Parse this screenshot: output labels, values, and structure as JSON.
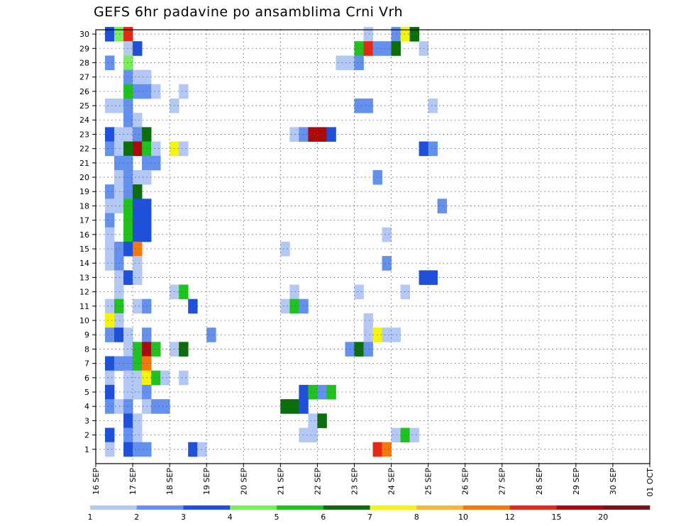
{
  "chart_data": {
    "type": "heatmap",
    "title": "GEFS 6hr padavine po ansamblima Crni Vrh",
    "xlabel": "",
    "ylabel": "",
    "x_ticks": [
      "16 SEP",
      "17 SEP",
      "18 SEP",
      "19 SEP",
      "20 SEP",
      "21 SEP",
      "22 SEP",
      "23 SEP",
      "24 SEP",
      "25 SEP",
      "26 SEP",
      "27 SEP",
      "28 SEP",
      "29 SEP",
      "30 SEP",
      "01 OCT"
    ],
    "y_ticks": [
      "1",
      "2",
      "3",
      "4",
      "5",
      "6",
      "7",
      "8",
      "9",
      "10",
      "11",
      "12",
      "13",
      "14",
      "15",
      "16",
      "17",
      "18",
      "19",
      "20",
      "21",
      "22",
      "23",
      "24",
      "25",
      "26",
      "27",
      "28",
      "29",
      "30"
    ],
    "x_unit": "6-hour step from 16 SEP 00Z",
    "y_range": [
      0,
      30
    ],
    "grid": true,
    "colorbar": {
      "labels": [
        "1",
        "2",
        "3",
        "4",
        "5",
        "6",
        "7",
        "8",
        "10",
        "12",
        "15",
        "20"
      ],
      "colors": [
        "#b4c8f5",
        "#6490ef",
        "#1e50dc",
        "#78f05a",
        "#1ec31e",
        "#0a6e0a",
        "#f5f50a",
        "#fab43c",
        "#f5780a",
        "#e62814",
        "#aa0a0a",
        "#781414"
      ]
    },
    "cells": [
      [
        1,
        30,
        2
      ],
      [
        2,
        30,
        3
      ],
      [
        3,
        30,
        9
      ],
      [
        29,
        30,
        0
      ],
      [
        32,
        30,
        1
      ],
      [
        33,
        30,
        6
      ],
      [
        34,
        30,
        5
      ],
      [
        3,
        29,
        0
      ],
      [
        4,
        29,
        2
      ],
      [
        28,
        29,
        4
      ],
      [
        29,
        29,
        9
      ],
      [
        30,
        29,
        1
      ],
      [
        31,
        29,
        1
      ],
      [
        32,
        29,
        5
      ],
      [
        35,
        29,
        0
      ],
      [
        1,
        28,
        1
      ],
      [
        3,
        28,
        3
      ],
      [
        26,
        28,
        0
      ],
      [
        27,
        28,
        0
      ],
      [
        28,
        28,
        1
      ],
      [
        3,
        27,
        1
      ],
      [
        4,
        27,
        0
      ],
      [
        5,
        27,
        0
      ],
      [
        3,
        26,
        4
      ],
      [
        4,
        26,
        1
      ],
      [
        5,
        26,
        1
      ],
      [
        6,
        26,
        0
      ],
      [
        9,
        26,
        0
      ],
      [
        1,
        25,
        0
      ],
      [
        2,
        25,
        0
      ],
      [
        3,
        25,
        1
      ],
      [
        8,
        25,
        0
      ],
      [
        28,
        25,
        1
      ],
      [
        29,
        25,
        1
      ],
      [
        36,
        25,
        0
      ],
      [
        3,
        24,
        1
      ],
      [
        4,
        24,
        0
      ],
      [
        1,
        23,
        2
      ],
      [
        2,
        23,
        0
      ],
      [
        3,
        23,
        0
      ],
      [
        4,
        23,
        1
      ],
      [
        5,
        23,
        5
      ],
      [
        21,
        23,
        0
      ],
      [
        22,
        23,
        1
      ],
      [
        23,
        23,
        10
      ],
      [
        24,
        23,
        10
      ],
      [
        25,
        23,
        2
      ],
      [
        1,
        22,
        1
      ],
      [
        2,
        22,
        0
      ],
      [
        3,
        22,
        5
      ],
      [
        4,
        22,
        10
      ],
      [
        5,
        22,
        4
      ],
      [
        6,
        22,
        0
      ],
      [
        8,
        22,
        6
      ],
      [
        9,
        22,
        0
      ],
      [
        35,
        22,
        2
      ],
      [
        36,
        22,
        1
      ],
      [
        2,
        21,
        1
      ],
      [
        3,
        21,
        1
      ],
      [
        5,
        21,
        1
      ],
      [
        6,
        21,
        1
      ],
      [
        2,
        20,
        0
      ],
      [
        3,
        20,
        1
      ],
      [
        4,
        20,
        0
      ],
      [
        5,
        20,
        0
      ],
      [
        30,
        20,
        1
      ],
      [
        1,
        19,
        1
      ],
      [
        2,
        19,
        0
      ],
      [
        3,
        19,
        1
      ],
      [
        4,
        19,
        5
      ],
      [
        1,
        18,
        0
      ],
      [
        2,
        18,
        0
      ],
      [
        3,
        18,
        4
      ],
      [
        4,
        18,
        2
      ],
      [
        5,
        18,
        2
      ],
      [
        37,
        18,
        1
      ],
      [
        1,
        17,
        1
      ],
      [
        3,
        17,
        4
      ],
      [
        4,
        17,
        2
      ],
      [
        5,
        17,
        2
      ],
      [
        1,
        16,
        0
      ],
      [
        3,
        16,
        4
      ],
      [
        4,
        16,
        2
      ],
      [
        5,
        16,
        2
      ],
      [
        31,
        16,
        0
      ],
      [
        1,
        15,
        0
      ],
      [
        2,
        15,
        1
      ],
      [
        3,
        15,
        2
      ],
      [
        4,
        15,
        8
      ],
      [
        20,
        15,
        0
      ],
      [
        1,
        14,
        0
      ],
      [
        2,
        14,
        1
      ],
      [
        4,
        14,
        0
      ],
      [
        31,
        14,
        1
      ],
      [
        2,
        13,
        0
      ],
      [
        3,
        13,
        2
      ],
      [
        4,
        13,
        0
      ],
      [
        35,
        13,
        2
      ],
      [
        36,
        13,
        2
      ],
      [
        2,
        12,
        0
      ],
      [
        8,
        12,
        0
      ],
      [
        9,
        12,
        4
      ],
      [
        21,
        12,
        0
      ],
      [
        28,
        12,
        0
      ],
      [
        33,
        12,
        0
      ],
      [
        1,
        11,
        0
      ],
      [
        2,
        11,
        4
      ],
      [
        4,
        11,
        0
      ],
      [
        5,
        11,
        1
      ],
      [
        10,
        11,
        2
      ],
      [
        20,
        11,
        0
      ],
      [
        21,
        11,
        4
      ],
      [
        22,
        11,
        1
      ],
      [
        1,
        10,
        6
      ],
      [
        2,
        10,
        0
      ],
      [
        29,
        10,
        0
      ],
      [
        1,
        9,
        1
      ],
      [
        2,
        9,
        2
      ],
      [
        3,
        9,
        0
      ],
      [
        5,
        9,
        1
      ],
      [
        12,
        9,
        1
      ],
      [
        29,
        9,
        0
      ],
      [
        30,
        9,
        6
      ],
      [
        31,
        9,
        0
      ],
      [
        32,
        9,
        0
      ],
      [
        3,
        8,
        0
      ],
      [
        4,
        8,
        4
      ],
      [
        5,
        8,
        10
      ],
      [
        6,
        8,
        4
      ],
      [
        8,
        8,
        0
      ],
      [
        9,
        8,
        5
      ],
      [
        27,
        8,
        1
      ],
      [
        28,
        8,
        5
      ],
      [
        29,
        8,
        1
      ],
      [
        1,
        7,
        2
      ],
      [
        2,
        7,
        1
      ],
      [
        3,
        7,
        1
      ],
      [
        4,
        7,
        4
      ],
      [
        5,
        7,
        8
      ],
      [
        1,
        6,
        0
      ],
      [
        3,
        6,
        0
      ],
      [
        4,
        6,
        0
      ],
      [
        5,
        6,
        6
      ],
      [
        6,
        6,
        4
      ],
      [
        7,
        6,
        0
      ],
      [
        9,
        6,
        0
      ],
      [
        1,
        5,
        2
      ],
      [
        3,
        5,
        0
      ],
      [
        4,
        5,
        0
      ],
      [
        5,
        5,
        1
      ],
      [
        22,
        5,
        2
      ],
      [
        23,
        5,
        4
      ],
      [
        24,
        5,
        1
      ],
      [
        25,
        5,
        4
      ],
      [
        1,
        4,
        1
      ],
      [
        2,
        4,
        0
      ],
      [
        3,
        4,
        1
      ],
      [
        5,
        4,
        0
      ],
      [
        6,
        4,
        1
      ],
      [
        7,
        4,
        1
      ],
      [
        20,
        4,
        5
      ],
      [
        21,
        4,
        5
      ],
      [
        22,
        4,
        2
      ],
      [
        3,
        3,
        2
      ],
      [
        4,
        3,
        0
      ],
      [
        23,
        3,
        0
      ],
      [
        24,
        3,
        5
      ],
      [
        1,
        2,
        2
      ],
      [
        3,
        2,
        1
      ],
      [
        4,
        2,
        0
      ],
      [
        22,
        2,
        0
      ],
      [
        23,
        2,
        0
      ],
      [
        32,
        2,
        0
      ],
      [
        33,
        2,
        4
      ],
      [
        34,
        2,
        0
      ],
      [
        1,
        1,
        0
      ],
      [
        3,
        1,
        2
      ],
      [
        4,
        1,
        1
      ],
      [
        5,
        1,
        1
      ],
      [
        10,
        1,
        2
      ],
      [
        11,
        1,
        0
      ],
      [
        30,
        1,
        9
      ],
      [
        31,
        1,
        8
      ]
    ]
  }
}
